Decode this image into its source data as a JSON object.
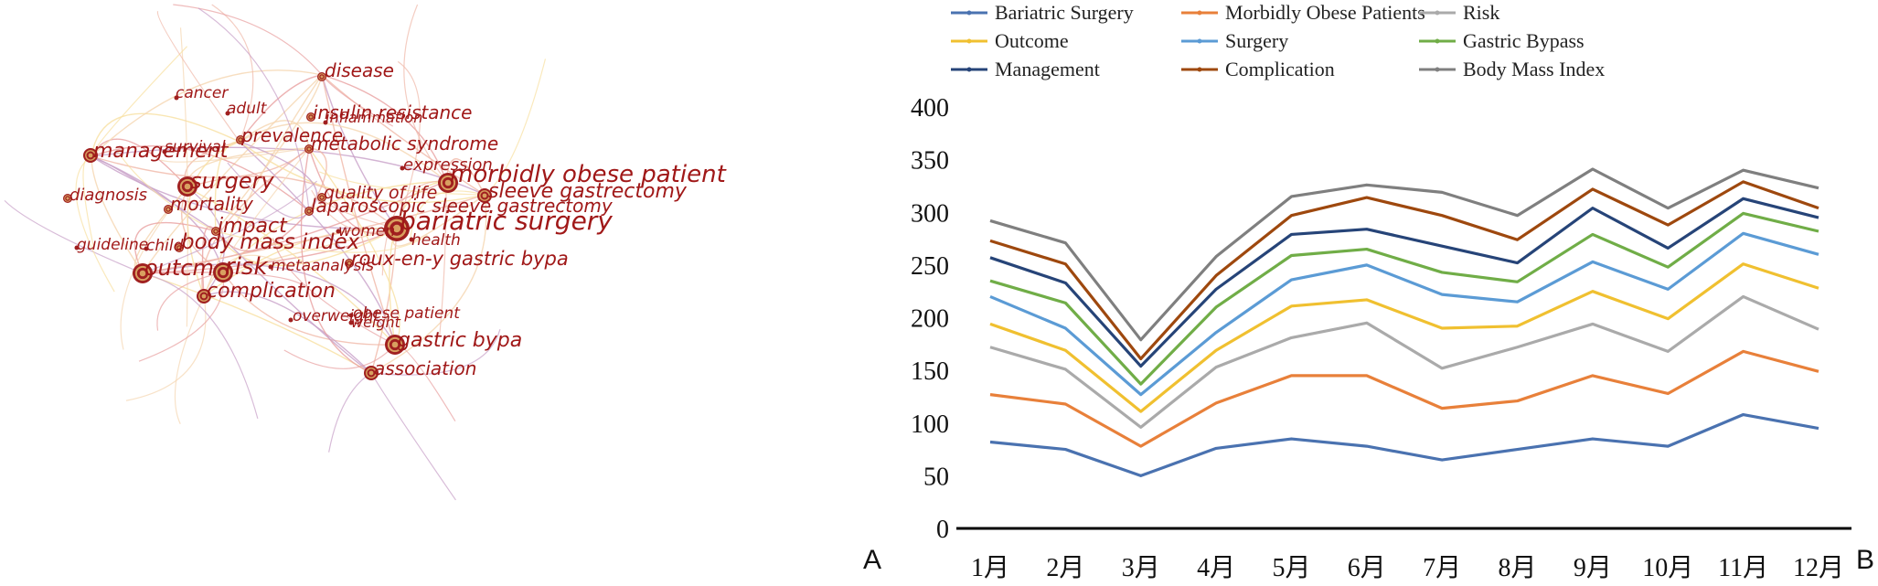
{
  "panels": {
    "left_label": "A",
    "right_label": "B"
  },
  "colors": {
    "node_fill": "#a02020",
    "node_ring": "#d8a060",
    "label": "#a01818",
    "edge_colors": [
      "#f0b8a8",
      "#f5d6b0",
      "#e8a0a0",
      "#c8a0c8",
      "#f8e0a0"
    ]
  },
  "network": {
    "nodes": [
      {
        "label": "disease",
        "size": 1
      },
      {
        "label": "cancer",
        "size": 0
      },
      {
        "label": "adult",
        "size": 0
      },
      {
        "label": "insulin resistance",
        "size": 1
      },
      {
        "label": "inflammation",
        "size": 0
      },
      {
        "label": "prevalence",
        "size": 1
      },
      {
        "label": "metabolic syndrome",
        "size": 1
      },
      {
        "label": "survival",
        "size": 0
      },
      {
        "label": "management",
        "size": 2
      },
      {
        "label": "expression",
        "size": 0
      },
      {
        "label": "morbidly obese patient",
        "size": 3
      },
      {
        "label": "sleeve gastrectomy",
        "size": 2
      },
      {
        "label": "surgery",
        "size": 3
      },
      {
        "label": "quality of life",
        "size": 1
      },
      {
        "label": "diagnosis",
        "size": 1
      },
      {
        "label": "mortality",
        "size": 1
      },
      {
        "label": "laparoscopic sleeve gastrectomy",
        "size": 1
      },
      {
        "label": "bariatric surgery",
        "size": 4
      },
      {
        "label": "impact",
        "size": 1
      },
      {
        "label": "women",
        "size": 0
      },
      {
        "label": "health",
        "size": 0
      },
      {
        "label": "guideline",
        "size": 0
      },
      {
        "label": "child",
        "size": 0
      },
      {
        "label": "body mass index",
        "size": 1
      },
      {
        "label": "outcm",
        "size": 3
      },
      {
        "label": "risk",
        "size": 3
      },
      {
        "label": "metaanalysis",
        "size": 0
      },
      {
        "label": "roux-en-y gastric bypa",
        "size": 1
      },
      {
        "label": "complication",
        "size": 2
      },
      {
        "label": "overweight",
        "size": 0
      },
      {
        "label": "obese patient",
        "size": 0
      },
      {
        "label": "weight",
        "size": 0
      },
      {
        "label": "gastric bypa",
        "size": 3
      },
      {
        "label": "association",
        "size": 2
      }
    ]
  },
  "chart_data": {
    "type": "line",
    "stacked": true,
    "categories": [
      "1月",
      "2月",
      "3月",
      "4月",
      "5月",
      "6月",
      "7月",
      "8月",
      "9月",
      "10月",
      "11月",
      "12月"
    ],
    "ylim": [
      0,
      400
    ],
    "yticks": [
      0,
      50,
      100,
      150,
      200,
      250,
      300,
      350,
      400
    ],
    "legend_position": "top",
    "grid": false,
    "series": [
      {
        "name": "Bariatric Surgery",
        "color": "#4a72b0",
        "values": [
          82,
          75,
          50,
          76,
          85,
          78,
          65,
          75,
          85,
          78,
          108,
          95
        ]
      },
      {
        "name": "Morbidly Obese Patients",
        "color": "#e8803a",
        "values": [
          45,
          43,
          28,
          43,
          60,
          67,
          49,
          46,
          60,
          50,
          60,
          54
        ]
      },
      {
        "name": "Risk",
        "color": "#aaaaaa",
        "values": [
          45,
          33,
          18,
          34,
          36,
          50,
          38,
          51,
          49,
          40,
          52,
          40
        ]
      },
      {
        "name": "Outcome",
        "color": "#f0c030",
        "values": [
          22,
          18,
          15,
          16,
          30,
          22,
          38,
          20,
          31,
          31,
          31,
          39
        ]
      },
      {
        "name": "Surgery",
        "color": "#5b9bd5",
        "values": [
          26,
          21,
          16,
          17,
          25,
          33,
          32,
          23,
          28,
          28,
          29,
          32
        ]
      },
      {
        "name": "Gastric Bypass",
        "color": "#70ad47",
        "values": [
          15,
          24,
          10,
          24,
          23,
          15,
          21,
          19,
          26,
          21,
          19,
          22
        ]
      },
      {
        "name": "Management",
        "color": "#264478",
        "values": [
          22,
          19,
          17,
          17,
          20,
          19,
          25,
          18,
          25,
          18,
          14,
          13
        ]
      },
      {
        "name": "Complication",
        "color": "#9e480e",
        "values": [
          16,
          18,
          7,
          13,
          18,
          30,
          29,
          22,
          18,
          22,
          16,
          9
        ]
      },
      {
        "name": "Body Mass Index",
        "color": "#7f7f7f",
        "values": [
          19,
          20,
          18,
          18,
          18,
          12,
          22,
          23,
          19,
          16,
          11,
          19
        ]
      }
    ]
  }
}
